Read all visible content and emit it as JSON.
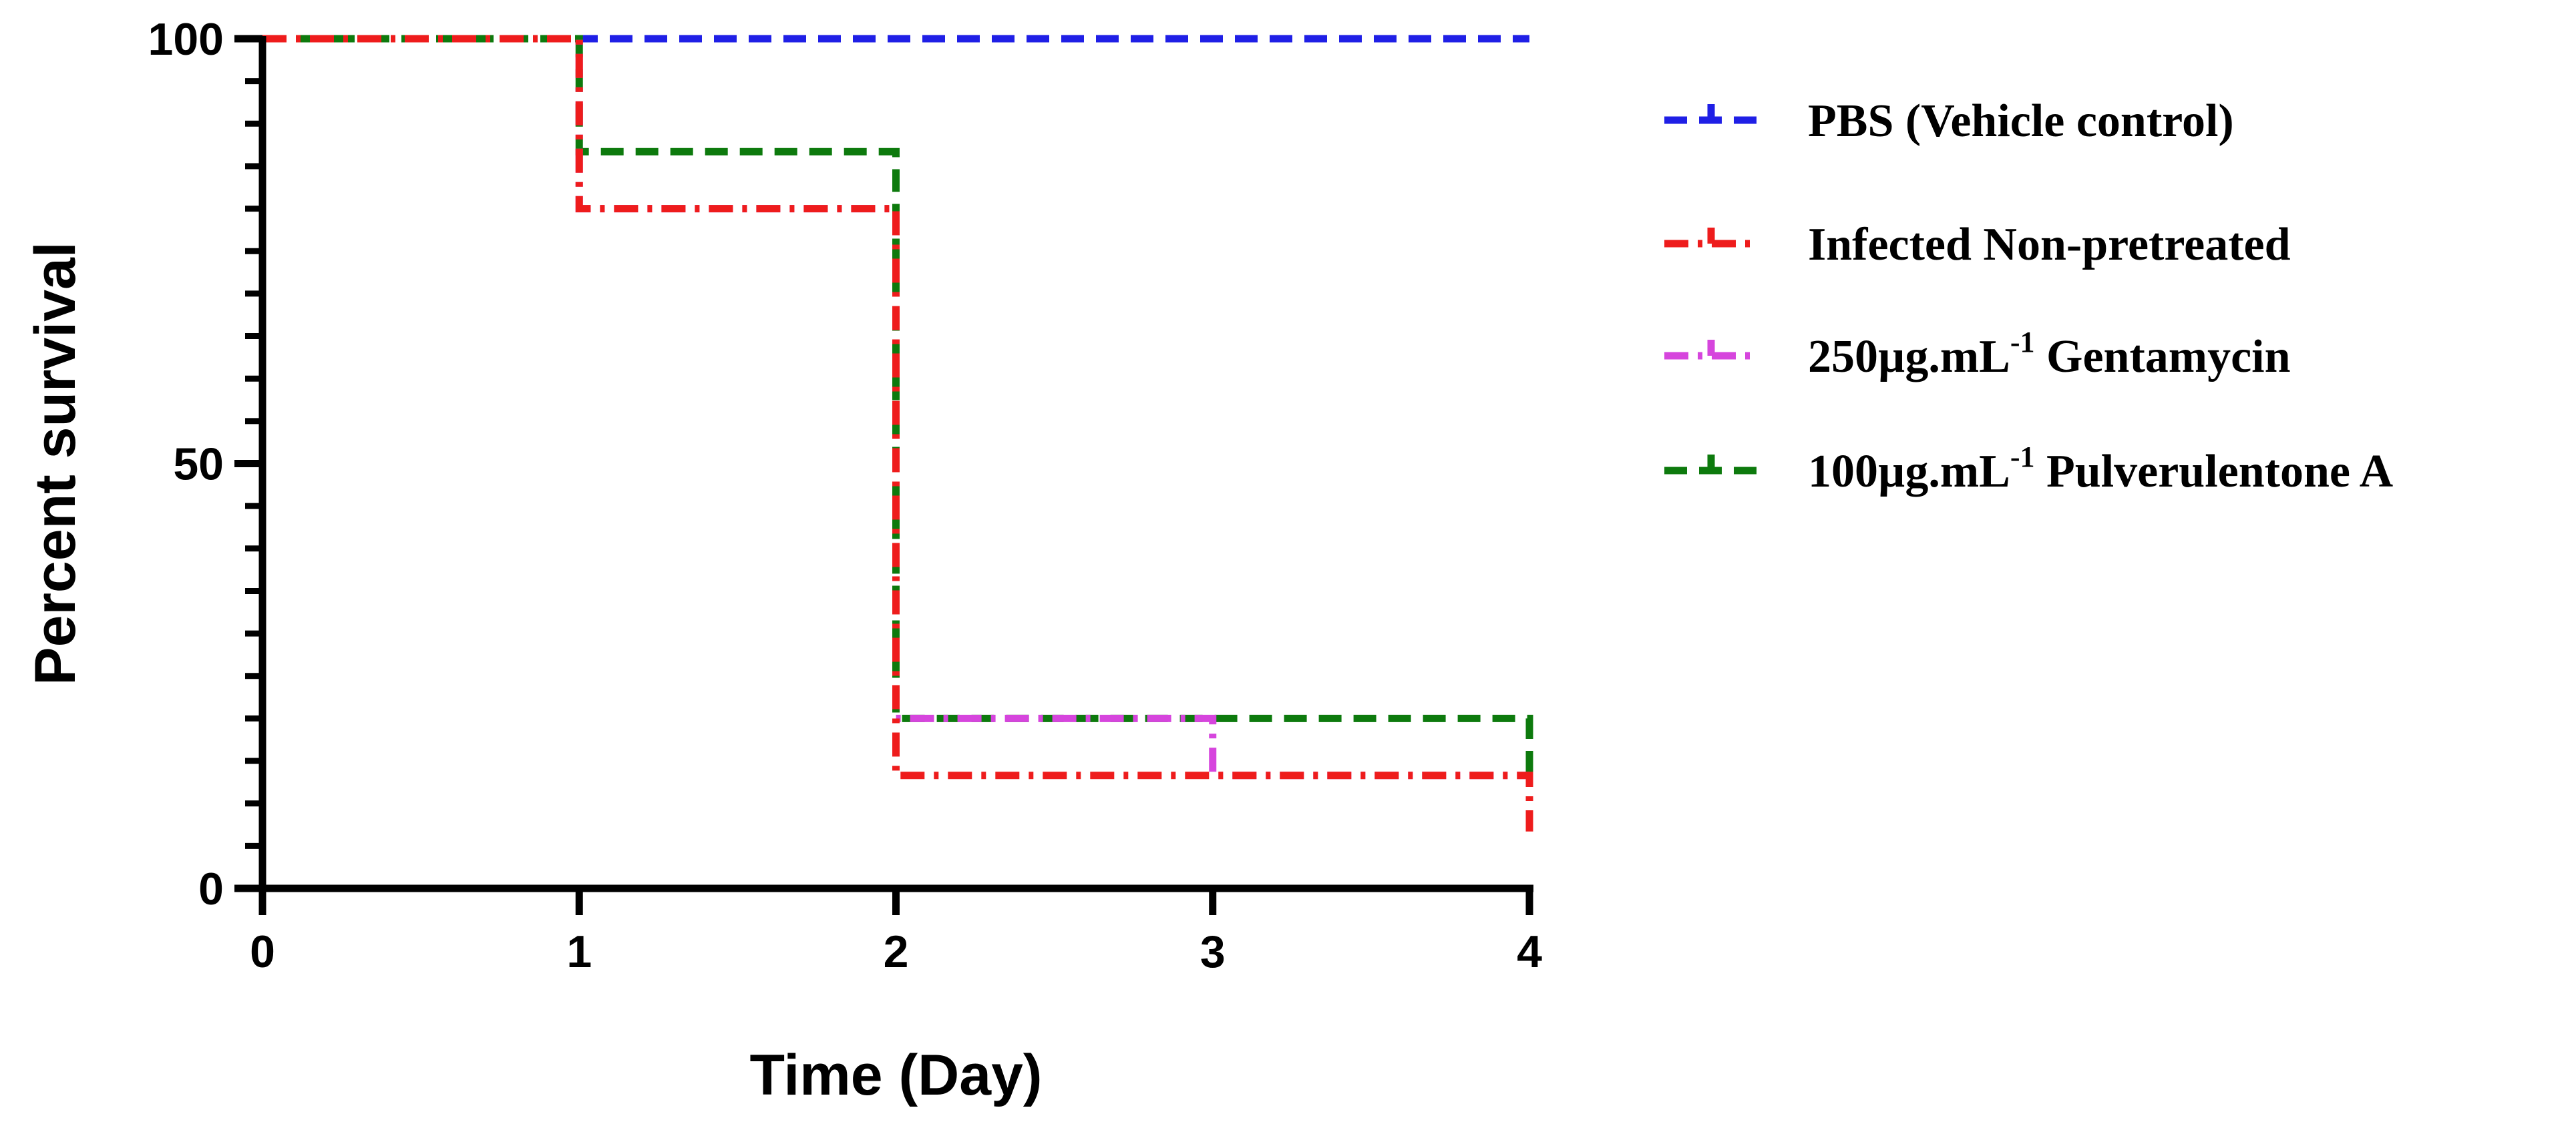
{
  "chart_data": {
    "type": "line",
    "subtype": "kaplan-meier survival (step)",
    "title": "",
    "xlabel": "Time (Day)",
    "ylabel": "Percent survival",
    "xlim": [
      0,
      4
    ],
    "ylim": [
      0,
      100
    ],
    "x_ticks": [
      "0",
      "1",
      "2",
      "3",
      "4"
    ],
    "y_ticks": [
      "0",
      "50",
      "100"
    ],
    "y_minor_step": 5,
    "grid": false,
    "legend_position": "right",
    "series": [
      {
        "name": "PBS (Vehicle control)",
        "legend_main": "PBS (Vehicle control)",
        "legend_sup": "",
        "legend_tail": "",
        "color": "#1f1fe6",
        "dash": "dashed",
        "x": [
          0,
          4
        ],
        "y": [
          100,
          100
        ]
      },
      {
        "name": "Infected Non-pretreated",
        "legend_main": "Infected Non-pretreated",
        "legend_sup": "",
        "legend_tail": "",
        "color": "#ee1c1c",
        "dash": "dash-dot",
        "x": [
          0,
          1,
          2,
          4
        ],
        "y": [
          100,
          80,
          13.3,
          6.7
        ]
      },
      {
        "name": "250µg.mL-1 Gentamycin",
        "legend_main": "250µg.mL",
        "legend_sup": "-1",
        "legend_tail": " Gentamycin",
        "color": "#d645dd",
        "dash": "dash-dot",
        "x": [
          0,
          1,
          2,
          3,
          4
        ],
        "y": [
          100,
          80,
          20,
          13.3,
          13.3
        ]
      },
      {
        "name": "100µg.mL-1 Pulverulentone A",
        "legend_main": "100µg.mL",
        "legend_sup": "-1",
        "legend_tail": " Pulverulentone A",
        "color": "#0d7a0d",
        "dash": "dashed",
        "x": [
          0,
          1,
          2,
          4
        ],
        "y": [
          100,
          86.7,
          20,
          13.3
        ]
      }
    ]
  }
}
